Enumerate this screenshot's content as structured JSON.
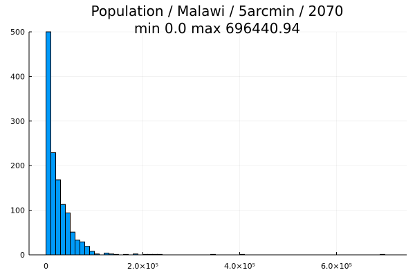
{
  "chart_data": {
    "type": "bar",
    "title": "Population / Malawi / 5arcmin / 2070",
    "subtitle": "min 0.0  max 696440.94",
    "bin_width": 10000,
    "bins": [
      {
        "x0": 0,
        "count": 500
      },
      {
        "x0": 10000,
        "count": 229
      },
      {
        "x0": 20000,
        "count": 168
      },
      {
        "x0": 30000,
        "count": 113
      },
      {
        "x0": 40000,
        "count": 94
      },
      {
        "x0": 50000,
        "count": 51
      },
      {
        "x0": 60000,
        "count": 33
      },
      {
        "x0": 70000,
        "count": 29
      },
      {
        "x0": 80000,
        "count": 19
      },
      {
        "x0": 90000,
        "count": 8
      },
      {
        "x0": 100000,
        "count": 2
      },
      {
        "x0": 120000,
        "count": 4
      },
      {
        "x0": 130000,
        "count": 2
      },
      {
        "x0": 140000,
        "count": 1
      },
      {
        "x0": 160000,
        "count": 1
      },
      {
        "x0": 180000,
        "count": 2
      },
      {
        "x0": 200000,
        "count": 1
      },
      {
        "x0": 210000,
        "count": 1
      },
      {
        "x0": 220000,
        "count": 1
      },
      {
        "x0": 230000,
        "count": 1
      },
      {
        "x0": 340000,
        "count": 1
      },
      {
        "x0": 400000,
        "count": 1
      },
      {
        "x0": 690000,
        "count": 1
      }
    ],
    "xlim": [
      -35000,
      745000
    ],
    "ylim": [
      0,
      500
    ],
    "x_ticks": [
      {
        "value": 0,
        "label": "0"
      },
      {
        "value": 200000,
        "label": "2.0×10⁵"
      },
      {
        "value": 400000,
        "label": "4.0×10⁵"
      },
      {
        "value": 600000,
        "label": "6.0×10⁵"
      }
    ],
    "y_ticks": [
      {
        "value": 0,
        "label": "0"
      },
      {
        "value": 100,
        "label": "100"
      },
      {
        "value": 200,
        "label": "200"
      },
      {
        "value": 300,
        "label": "300"
      },
      {
        "value": 400,
        "label": "400"
      },
      {
        "value": 500,
        "label": "500"
      }
    ],
    "grid": true,
    "legend": false,
    "bar_color": "#009af9"
  }
}
